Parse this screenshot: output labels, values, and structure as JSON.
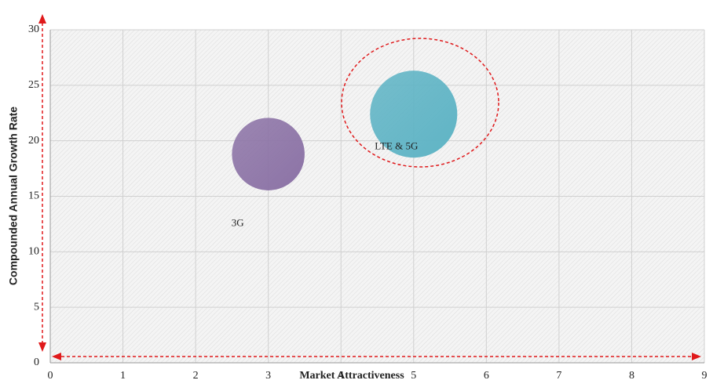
{
  "chart_data": {
    "type": "bubble",
    "x_label": "Market Attractiveness",
    "y_label": "Compounded Annual Growth Rate",
    "xlim": [
      0,
      9
    ],
    "xticks": [
      0,
      1,
      2,
      3,
      4,
      5,
      6,
      7,
      8,
      9
    ],
    "ylim": [
      0,
      30
    ],
    "yticks": [
      0,
      5,
      10,
      15,
      20,
      25,
      30
    ],
    "grid": true,
    "series": [
      {
        "name": "3G",
        "x": 3,
        "y": 18.8,
        "size": 0.5,
        "color": "#8c73a6"
      },
      {
        "name": "LTE & 5G",
        "x": 5,
        "y": 22.4,
        "size": 0.6,
        "color": "#5fb4c5"
      }
    ]
  }
}
